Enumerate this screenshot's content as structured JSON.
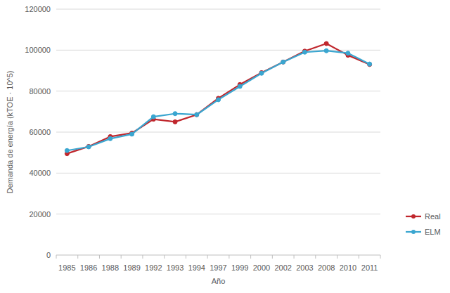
{
  "chart_data": {
    "type": "line",
    "x_label": "Año",
    "y_label": "Demanda de energía (kTOE · 10^5)",
    "categories": [
      "1985",
      "1986",
      "1988",
      "1989",
      "1992",
      "1993",
      "1994",
      "1997",
      "1999",
      "2000",
      "2002",
      "2003",
      "2008",
      "2010",
      "2011"
    ],
    "series": [
      {
        "name": "Real",
        "color": "#c0272d",
        "marker": "circle",
        "values": [
          49500,
          53000,
          57800,
          59500,
          66300,
          65000,
          68500,
          76500,
          83200,
          89000,
          94200,
          99500,
          103200,
          97500,
          93000
        ]
      },
      {
        "name": "ELM",
        "color": "#3aa6d0",
        "marker": "circle",
        "values": [
          51000,
          52800,
          56800,
          59000,
          67500,
          69000,
          68500,
          75800,
          82300,
          88700,
          94200,
          99000,
          99700,
          98500,
          93200
        ]
      }
    ],
    "ylim": [
      0,
      120000
    ],
    "yticks": [
      0,
      20000,
      40000,
      60000,
      80000,
      100000,
      120000
    ],
    "grid": true,
    "legend": "right"
  }
}
